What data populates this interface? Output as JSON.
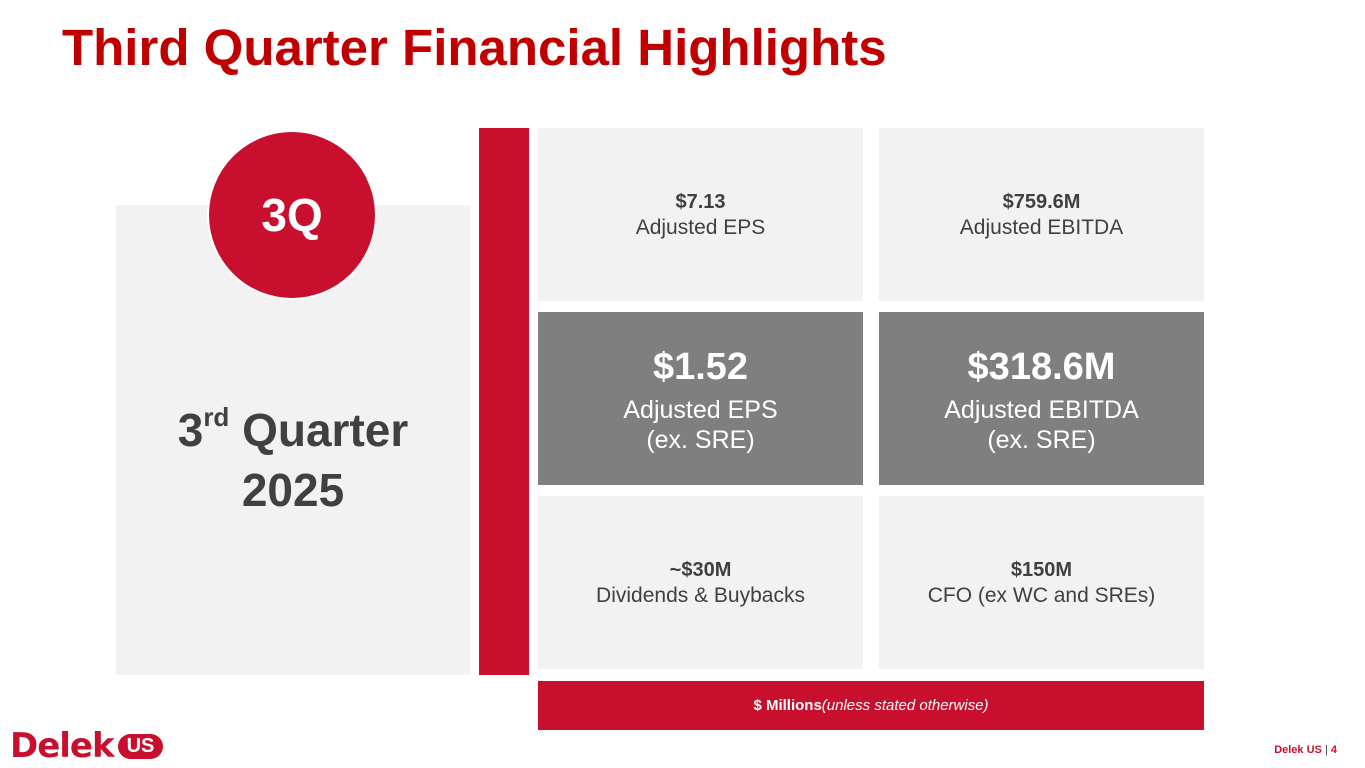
{
  "header": {
    "title": "Third Quarter Financial Highlights"
  },
  "badge": "3Q",
  "period": {
    "number": "3",
    "suffix": "rd",
    "word": "Quarter",
    "year": "2025"
  },
  "tiles": [
    {
      "value": "$7.13",
      "label": [
        "Adjusted EPS"
      ]
    },
    {
      "value": "$759.6M",
      "label": [
        "Adjusted EBITDA"
      ]
    },
    {
      "value": "$1.52",
      "label": [
        "Adjusted EPS",
        "(ex. SRE)"
      ]
    },
    {
      "value": "$318.6M",
      "label": [
        "Adjusted EBITDA",
        "(ex. SRE)"
      ]
    },
    {
      "value": "~$30M",
      "label": [
        "Dividends & Buybacks"
      ]
    },
    {
      "value": "$150M",
      "label": [
        "CFO (ex WC and SREs)"
      ]
    }
  ],
  "note": {
    "strong": "$ Millions",
    "italic": "(unless stated otherwise)"
  },
  "logo": {
    "name": "Delek",
    "suffix": "US"
  },
  "footer": {
    "company": "Delek US",
    "page": "4"
  }
}
